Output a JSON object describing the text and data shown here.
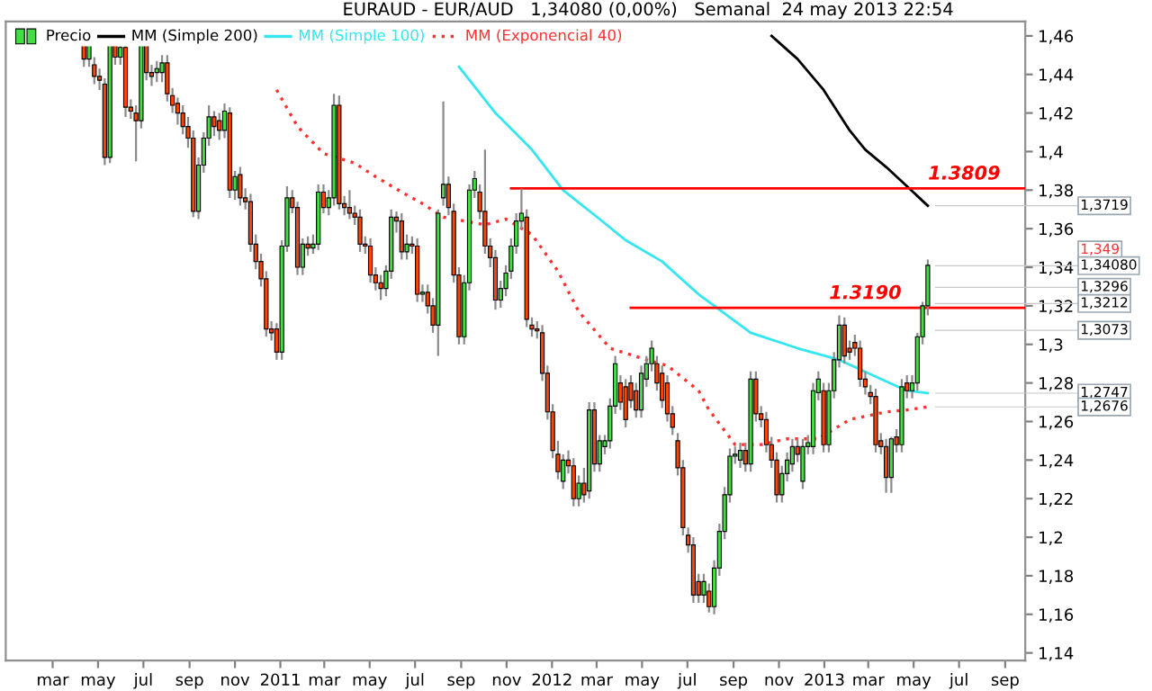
{
  "chart_data": {
    "type": "candlestick",
    "title": "EURAUD - EUR/AUD   1,34080 (0,00%)   Semanal  24 may 2013 22:54",
    "series": [
      {
        "type": "line",
        "name": "MM (Simple 200)",
        "color": "#000000",
        "line_style": "solid",
        "x": [
          "2012-10-22",
          "2012-11-26",
          "2012-12-31",
          "2013-02-04",
          "2013-02-25",
          "2013-03-25",
          "2013-04-22",
          "2013-05-20"
        ],
        "values": [
          1.46,
          1.448,
          1.432,
          1.411,
          1.401,
          1.392,
          1.382,
          1.3719
        ]
      },
      {
        "type": "line",
        "name": "MM (Simple 100)",
        "color": "#33e6f0",
        "line_style": "solid",
        "x": [
          "2011-08-29",
          "2011-10-17",
          "2011-12-05",
          "2012-01-16",
          "2012-03-05",
          "2012-04-09",
          "2012-05-28",
          "2012-07-16",
          "2012-08-06",
          "2012-09-24",
          "2012-11-26",
          "2013-01-21",
          "2013-03-18",
          "2013-04-22",
          "2013-05-20"
        ],
        "values": [
          1.444,
          1.42,
          1.401,
          1.38,
          1.365,
          1.354,
          1.343,
          1.326,
          1.32,
          1.306,
          1.298,
          1.292,
          1.282,
          1.276,
          1.2747
        ]
      },
      {
        "type": "line",
        "name": "MM (Exponencial 40)",
        "color": "#ff3030",
        "line_style": "dotted",
        "x": [
          "2010-12-27",
          "2011-01-24",
          "2011-02-28",
          "2011-04-11",
          "2011-05-09",
          "2011-06-13",
          "2011-07-11",
          "2011-08-08",
          "2011-10-03",
          "2011-10-31",
          "2011-12-05",
          "2012-01-09",
          "2012-02-06",
          "2012-03-19",
          "2012-05-07",
          "2012-06-04",
          "2012-07-16",
          "2012-07-30",
          "2012-09-03",
          "2012-10-08",
          "2012-11-12",
          "2012-12-24",
          "2013-02-04",
          "2013-03-25",
          "2013-04-22",
          "2013-05-20"
        ],
        "values": [
          1.432,
          1.413,
          1.399,
          1.394,
          1.387,
          1.379,
          1.373,
          1.366,
          1.362,
          1.365,
          1.357,
          1.338,
          1.317,
          1.298,
          1.292,
          1.289,
          1.276,
          1.266,
          1.248,
          1.248,
          1.251,
          1.251,
          1.261,
          1.265,
          1.266,
          1.2676
        ]
      },
      {
        "type": "line",
        "color": "#ff0000",
        "line_style": "solid",
        "x": [
          "2011-11-07",
          "2013-09-28"
        ],
        "values": [
          1.3809,
          1.3809
        ]
      },
      {
        "type": "line",
        "color": "#ff0000",
        "line_style": "solid",
        "x": [
          "2012-04-16",
          "2013-09-28"
        ],
        "values": [
          1.319,
          1.319
        ]
      },
      {
        "name": "Precio",
        "colors": [
          "#ff4500",
          "#44dd44",
          "#ff4500",
          "#ff4500",
          "#ff4500",
          "#44dd44",
          "#ff4500",
          "#44dd44",
          "#ff4500",
          "#ff4500",
          "#ff4500",
          "#44dd44",
          "#ff4500",
          "#ff4500",
          "#44dd44",
          "#44dd44",
          "#ff4500",
          "#ff4500",
          "#ff4500",
          "#ff4500",
          "#ff4500",
          "#ff4500",
          "#44dd44",
          "#44dd44",
          "#44dd44",
          "#ff4500",
          "#ff4500",
          "#44dd44",
          "#ff4500",
          "#44dd44",
          "#ff4500",
          "#ff4500",
          "#ff4500",
          "#ff4500",
          "#ff4500",
          "#ff4500",
          "#ff4500",
          "#ff4500",
          "#44dd44",
          "#44dd44",
          "#ff4500",
          "#ff4500",
          "#44dd44",
          "#ff4500",
          "#44dd44",
          "#44dd44",
          "#ff4500",
          "#44dd44",
          "#44dd44",
          "#ff4500",
          "#ff4500",
          "#ff4500",
          "#ff4500",
          "#ff4500",
          "#ff4500",
          "#ff4500",
          "#ff4500",
          "#ff4500",
          "#44dd44",
          "#44dd44",
          "#ff4500",
          "#ff4500",
          "#44dd44",
          "#ff4500",
          "#ff4500",
          "#44dd44",
          "#ff4500",
          "#ff4500",
          "#44dd44",
          "#44dd44",
          "#ff4500",
          "#ff4500",
          "#ff4500",
          "#44dd44",
          "#44dd44",
          "#44dd44",
          "#ff4500",
          "#ff4500",
          "#ff4500",
          "#ff4500",
          "#44dd44",
          "#44dd44",
          "#44dd44",
          "#44dd44",
          "#44dd44",
          "#ff4500",
          "#ff4500",
          "#ff4500",
          "#ff4500",
          "#ff4500",
          "#ff4500",
          "#ff4500",
          "#44dd44",
          "#ff4500",
          "#ff4500",
          "#44dd44",
          "#ff4500",
          "#44dd44",
          "#ff4500",
          "#44dd44",
          "#44dd44",
          "#44dd44",
          "#44dd44",
          "#ff4500",
          "#ff4500",
          "#ff4500",
          "#ff4500",
          "#44dd44",
          "#44dd44",
          "#44dd44",
          "#ff4500",
          "#ff4500",
          "#ff4500",
          "#ff4500",
          "#ff4500",
          "#ff4500",
          "#ff4500",
          "#ff4500",
          "#ff4500",
          "#44dd44",
          "#ff4500",
          "#44dd44",
          "#44dd44",
          "#44dd44",
          "#44dd44",
          "#44dd44",
          "#44dd44",
          "#ff4500",
          "#44dd44",
          "#ff4500",
          "#ff4500",
          "#ff4500",
          "#ff4500",
          "#ff4500",
          "#44dd44",
          "#44dd44",
          "#44dd44",
          "#ff4500",
          "#44dd44",
          "#44dd44",
          "#44dd44",
          "#44dd44",
          "#ff4500",
          "#44dd44",
          "#44dd44",
          "#44dd44",
          "#ff4500",
          "#ff4500",
          "#ff4500",
          "#ff4500",
          "#ff4500",
          "#ff4500",
          "#ff4500",
          "#ff4500",
          "#ff4500",
          "#44dd44",
          "#ff4500",
          "#44dd44",
          "#ff4500",
          "#44dd44",
          "#44dd44",
          "#44dd44",
          "#44dd44"
        ],
        "x": [
          "2010-04-12",
          "2010-04-19",
          "2010-04-26",
          "2010-05-03",
          "2010-05-10",
          "2010-05-17",
          "2010-05-24",
          "2010-05-31",
          "2010-06-07",
          "2010-06-14",
          "2010-06-21",
          "2010-06-28",
          "2010-07-05",
          "2010-07-12",
          "2010-07-19",
          "2010-07-26",
          "2010-08-02",
          "2010-08-09",
          "2010-08-16",
          "2010-08-23",
          "2010-08-30",
          "2010-09-06",
          "2010-09-13",
          "2010-09-20",
          "2010-09-27",
          "2010-10-04",
          "2010-10-11",
          "2010-10-18",
          "2010-10-25",
          "2010-11-01",
          "2010-11-08",
          "2010-11-15",
          "2010-11-22",
          "2010-11-29",
          "2010-12-06",
          "2010-12-13",
          "2010-12-20",
          "2010-12-27",
          "2011-01-03",
          "2011-01-10",
          "2011-01-17",
          "2011-01-24",
          "2011-01-31",
          "2011-02-07",
          "2011-02-14",
          "2011-02-21",
          "2011-02-28",
          "2011-03-07",
          "2011-03-14",
          "2011-03-21",
          "2011-03-28",
          "2011-04-04",
          "2011-04-11",
          "2011-04-18",
          "2011-04-25",
          "2011-05-02",
          "2011-05-09",
          "2011-05-16",
          "2011-05-23",
          "2011-05-30",
          "2011-06-06",
          "2011-06-13",
          "2011-06-20",
          "2011-06-27",
          "2011-07-04",
          "2011-07-11",
          "2011-07-18",
          "2011-07-25",
          "2011-08-01",
          "2011-08-08",
          "2011-08-15",
          "2011-08-22",
          "2011-08-29",
          "2011-09-05",
          "2011-09-12",
          "2011-09-19",
          "2011-09-26",
          "2011-10-03",
          "2011-10-10",
          "2011-10-17",
          "2011-10-24",
          "2011-10-31",
          "2011-11-07",
          "2011-11-14",
          "2011-11-21",
          "2011-11-28",
          "2011-12-05",
          "2011-12-12",
          "2011-12-19",
          "2011-12-26",
          "2012-01-02",
          "2012-01-09",
          "2012-01-16",
          "2012-01-23",
          "2012-01-30",
          "2012-02-06",
          "2012-02-13",
          "2012-02-20",
          "2012-02-27",
          "2012-03-05",
          "2012-03-12",
          "2012-03-19",
          "2012-03-26",
          "2012-04-02",
          "2012-04-09",
          "2012-04-16",
          "2012-04-23",
          "2012-04-30",
          "2012-05-07",
          "2012-05-14",
          "2012-05-21",
          "2012-05-28",
          "2012-06-04",
          "2012-06-11",
          "2012-06-18",
          "2012-06-25",
          "2012-07-02",
          "2012-07-09",
          "2012-07-16",
          "2012-07-23",
          "2012-07-30",
          "2012-08-06",
          "2012-08-13",
          "2012-08-20",
          "2012-08-27",
          "2012-09-03",
          "2012-09-10",
          "2012-09-17",
          "2012-09-24",
          "2012-10-01",
          "2012-10-08",
          "2012-10-15",
          "2012-10-22",
          "2012-10-29",
          "2012-11-05",
          "2012-11-12",
          "2012-11-19",
          "2012-11-26",
          "2012-12-03",
          "2012-12-10",
          "2012-12-17",
          "2012-12-24",
          "2012-12-31",
          "2013-01-07",
          "2013-01-14",
          "2013-01-21",
          "2013-01-28",
          "2013-02-04",
          "2013-02-11",
          "2013-02-18",
          "2013-02-25",
          "2013-03-04",
          "2013-03-11",
          "2013-03-18",
          "2013-03-25",
          "2013-04-01",
          "2013-04-08",
          "2013-04-15",
          "2013-04-22",
          "2013-04-29",
          "2013-05-06",
          "2013-05-13",
          "2013-05-20"
        ],
        "ohlc": [
          [
            1.46,
            1.46,
            1.444,
            1.448
          ],
          [
            1.448,
            1.46,
            1.444,
            1.458
          ],
          [
            1.445,
            1.449,
            1.435,
            1.439
          ],
          [
            1.439,
            1.443,
            1.432,
            1.437
          ],
          [
            1.435,
            1.438,
            1.393,
            1.397
          ],
          [
            1.397,
            1.46,
            1.394,
            1.46
          ],
          [
            1.458,
            1.46,
            1.445,
            1.449
          ],
          [
            1.449,
            1.458,
            1.445,
            1.454
          ],
          [
            1.454,
            1.458,
            1.418,
            1.423
          ],
          [
            1.423,
            1.427,
            1.417,
            1.421
          ],
          [
            1.42,
            1.424,
            1.395,
            1.416
          ],
          [
            1.416,
            1.46,
            1.412,
            1.458
          ],
          [
            1.458,
            1.46,
            1.437,
            1.441
          ],
          [
            1.441,
            1.445,
            1.434,
            1.439
          ],
          [
            1.441,
            1.447,
            1.436,
            1.443
          ],
          [
            1.441,
            1.45,
            1.436,
            1.446
          ],
          [
            1.446,
            1.45,
            1.426,
            1.43
          ],
          [
            1.429,
            1.433,
            1.42,
            1.424
          ],
          [
            1.425,
            1.428,
            1.414,
            1.42
          ],
          [
            1.42,
            1.424,
            1.409,
            1.413
          ],
          [
            1.413,
            1.418,
            1.402,
            1.407
          ],
          [
            1.407,
            1.411,
            1.366,
            1.369
          ],
          [
            1.369,
            1.397,
            1.365,
            1.393
          ],
          [
            1.393,
            1.41,
            1.389,
            1.407
          ],
          [
            1.407,
            1.424,
            1.403,
            1.418
          ],
          [
            1.418,
            1.421,
            1.408,
            1.413
          ],
          [
            1.416,
            1.42,
            1.406,
            1.411
          ],
          [
            1.411,
            1.425,
            1.407,
            1.421
          ],
          [
            1.42,
            1.423,
            1.376,
            1.38
          ],
          [
            1.38,
            1.39,
            1.375,
            1.387
          ],
          [
            1.388,
            1.392,
            1.372,
            1.376
          ],
          [
            1.376,
            1.381,
            1.37,
            1.374
          ],
          [
            1.374,
            1.378,
            1.348,
            1.352
          ],
          [
            1.352,
            1.357,
            1.339,
            1.343
          ],
          [
            1.343,
            1.347,
            1.33,
            1.334
          ],
          [
            1.334,
            1.338,
            1.304,
            1.308
          ],
          [
            1.308,
            1.312,
            1.302,
            1.306
          ],
          [
            1.308,
            1.311,
            1.292,
            1.296
          ],
          [
            1.296,
            1.354,
            1.292,
            1.351
          ],
          [
            1.351,
            1.382,
            1.348,
            1.376
          ],
          [
            1.376,
            1.38,
            1.368,
            1.371
          ],
          [
            1.371,
            1.374,
            1.336,
            1.34
          ],
          [
            1.34,
            1.355,
            1.336,
            1.352
          ],
          [
            1.352,
            1.356,
            1.346,
            1.35
          ],
          [
            1.35,
            1.357,
            1.347,
            1.352
          ],
          [
            1.352,
            1.383,
            1.349,
            1.379
          ],
          [
            1.379,
            1.383,
            1.368,
            1.371
          ],
          [
            1.371,
            1.38,
            1.367,
            1.376
          ],
          [
            1.376,
            1.43,
            1.372,
            1.424
          ],
          [
            1.424,
            1.429,
            1.37,
            1.373
          ],
          [
            1.373,
            1.377,
            1.367,
            1.371
          ],
          [
            1.371,
            1.38,
            1.365,
            1.368
          ],
          [
            1.368,
            1.372,
            1.362,
            1.366
          ],
          [
            1.366,
            1.37,
            1.348,
            1.352
          ],
          [
            1.352,
            1.356,
            1.347,
            1.351
          ],
          [
            1.351,
            1.355,
            1.332,
            1.336
          ],
          [
            1.336,
            1.34,
            1.328,
            1.332
          ],
          [
            1.332,
            1.336,
            1.323,
            1.329
          ],
          [
            1.329,
            1.341,
            1.325,
            1.338
          ],
          [
            1.338,
            1.37,
            1.334,
            1.366
          ],
          [
            1.366,
            1.369,
            1.358,
            1.364
          ],
          [
            1.364,
            1.368,
            1.344,
            1.348
          ],
          [
            1.348,
            1.357,
            1.344,
            1.352
          ],
          [
            1.352,
            1.356,
            1.347,
            1.351
          ],
          [
            1.351,
            1.355,
            1.322,
            1.326
          ],
          [
            1.326,
            1.331,
            1.322,
            1.327
          ],
          [
            1.327,
            1.331,
            1.316,
            1.32
          ],
          [
            1.32,
            1.324,
            1.306,
            1.31
          ],
          [
            1.31,
            1.37,
            1.294,
            1.368
          ],
          [
            1.376,
            1.426,
            1.372,
            1.383
          ],
          [
            1.383,
            1.387,
            1.367,
            1.371
          ],
          [
            1.369,
            1.373,
            1.332,
            1.336
          ],
          [
            1.336,
            1.34,
            1.3,
            1.304
          ],
          [
            1.304,
            1.336,
            1.3,
            1.332
          ],
          [
            1.332,
            1.383,
            1.328,
            1.38
          ],
          [
            1.38,
            1.39,
            1.376,
            1.386
          ],
          [
            1.379,
            1.383,
            1.365,
            1.369
          ],
          [
            1.369,
            1.401,
            1.347,
            1.351
          ],
          [
            1.351,
            1.355,
            1.34,
            1.345
          ],
          [
            1.345,
            1.349,
            1.318,
            1.323
          ],
          [
            1.323,
            1.333,
            1.319,
            1.329
          ],
          [
            1.329,
            1.341,
            1.325,
            1.337
          ],
          [
            1.338,
            1.355,
            1.334,
            1.351
          ],
          [
            1.351,
            1.368,
            1.347,
            1.364
          ],
          [
            1.364,
            1.3809,
            1.36,
            1.368
          ],
          [
            1.366,
            1.37,
            1.309,
            1.313
          ],
          [
            1.31,
            1.314,
            1.304,
            1.308
          ],
          [
            1.308,
            1.312,
            1.303,
            1.307
          ],
          [
            1.306,
            1.31,
            1.281,
            1.285
          ],
          [
            1.285,
            1.289,
            1.261,
            1.265
          ],
          [
            1.265,
            1.269,
            1.241,
            1.245
          ],
          [
            1.243,
            1.25,
            1.23,
            1.234
          ],
          [
            1.229,
            1.243,
            1.225,
            1.24
          ],
          [
            1.24,
            1.245,
            1.233,
            1.237
          ],
          [
            1.237,
            1.241,
            1.216,
            1.22
          ],
          [
            1.22,
            1.232,
            1.216,
            1.228
          ],
          [
            1.228,
            1.236,
            1.218,
            1.222
          ],
          [
            1.224,
            1.27,
            1.22,
            1.266
          ],
          [
            1.266,
            1.27,
            1.234,
            1.238
          ],
          [
            1.238,
            1.253,
            1.234,
            1.25
          ],
          [
            1.247,
            1.253,
            1.243,
            1.25
          ],
          [
            1.25,
            1.272,
            1.246,
            1.268
          ],
          [
            1.268,
            1.294,
            1.264,
            1.29
          ],
          [
            1.28,
            1.284,
            1.266,
            1.27
          ],
          [
            1.278,
            1.282,
            1.257,
            1.261
          ],
          [
            1.28,
            1.284,
            1.267,
            1.271
          ],
          [
            1.276,
            1.28,
            1.262,
            1.266
          ],
          [
            1.266,
            1.289,
            1.262,
            1.285
          ],
          [
            1.282,
            1.294,
            1.278,
            1.29
          ],
          [
            1.29,
            1.302,
            1.286,
            1.298
          ],
          [
            1.29,
            1.294,
            1.276,
            1.28
          ],
          [
            1.285,
            1.289,
            1.267,
            1.271
          ],
          [
            1.28,
            1.284,
            1.26,
            1.264
          ],
          [
            1.264,
            1.268,
            1.253,
            1.257
          ],
          [
            1.25,
            1.254,
            1.232,
            1.236
          ],
          [
            1.236,
            1.24,
            1.201,
            1.205
          ],
          [
            1.201,
            1.205,
            1.192,
            1.196
          ],
          [
            1.196,
            1.2,
            1.166,
            1.17
          ],
          [
            1.177,
            1.181,
            1.166,
            1.17
          ],
          [
            1.17,
            1.181,
            1.166,
            1.177
          ],
          [
            1.172,
            1.176,
            1.161,
            1.164
          ],
          [
            1.164,
            1.188,
            1.16,
            1.184
          ],
          [
            1.184,
            1.207,
            1.18,
            1.203
          ],
          [
            1.203,
            1.226,
            1.199,
            1.222
          ],
          [
            1.222,
            1.246,
            1.218,
            1.242
          ],
          [
            1.242,
            1.247,
            1.238,
            1.243
          ],
          [
            1.24,
            1.249,
            1.236,
            1.245
          ],
          [
            1.245,
            1.249,
            1.234,
            1.238
          ],
          [
            1.238,
            1.286,
            1.234,
            1.282
          ],
          [
            1.282,
            1.286,
            1.26,
            1.264
          ],
          [
            1.264,
            1.268,
            1.257,
            1.261
          ],
          [
            1.261,
            1.265,
            1.244,
            1.248
          ],
          [
            1.248,
            1.252,
            1.236,
            1.24
          ],
          [
            1.24,
            1.244,
            1.218,
            1.222
          ],
          [
            1.222,
            1.237,
            1.218,
            1.233
          ],
          [
            1.233,
            1.244,
            1.229,
            1.24
          ],
          [
            1.238,
            1.251,
            1.234,
            1.247
          ],
          [
            1.247,
            1.251,
            1.239,
            1.243
          ],
          [
            1.229,
            1.251,
            1.225,
            1.247
          ],
          [
            1.247,
            1.253,
            1.243,
            1.249
          ],
          [
            1.247,
            1.28,
            1.243,
            1.276
          ],
          [
            1.275,
            1.286,
            1.271,
            1.282
          ],
          [
            1.276,
            1.28,
            1.244,
            1.248
          ],
          [
            1.248,
            1.28,
            1.244,
            1.276
          ],
          [
            1.276,
            1.296,
            1.272,
            1.292
          ],
          [
            1.292,
            1.315,
            1.288,
            1.31
          ],
          [
            1.31,
            1.314,
            1.29,
            1.294
          ],
          [
            1.298,
            1.302,
            1.292,
            1.296
          ],
          [
            1.301,
            1.305,
            1.294,
            1.298
          ],
          [
            1.298,
            1.302,
            1.278,
            1.282
          ],
          [
            1.282,
            1.286,
            1.274,
            1.278
          ],
          [
            1.275,
            1.279,
            1.269,
            1.273
          ],
          [
            1.273,
            1.277,
            1.244,
            1.248
          ],
          [
            1.25,
            1.254,
            1.243,
            1.247
          ],
          [
            1.247,
            1.251,
            1.223,
            1.231
          ],
          [
            1.231,
            1.252,
            1.223,
            1.251
          ],
          [
            1.252,
            1.256,
            1.244,
            1.248
          ],
          [
            1.248,
            1.282,
            1.244,
            1.278
          ],
          [
            1.28,
            1.284,
            1.272,
            1.276
          ],
          [
            1.276,
            1.284,
            1.272,
            1.28
          ],
          [
            1.28,
            1.306,
            1.276,
            1.304
          ],
          [
            1.304,
            1.322,
            1.3,
            1.32
          ],
          [
            1.32,
            1.344,
            1.315,
            1.341
          ]
        ]
      }
    ],
    "annotations": [
      {
        "text": "1.3809",
        "x": "2013-07-08",
        "y": 1.3809
      },
      {
        "text": "1.3190",
        "x": "2013-02-25",
        "y": 1.319
      },
      {
        "text": "1,3719",
        "x": "2013-05-20",
        "y": 1.3719
      },
      "1,349",
      {
        "text": "1,34080",
        "x": "2013-05-20",
        "y": 1.3408
      },
      {
        "text": "1,3296",
        "x": "2013-05-20",
        "y": 1.3296
      },
      {
        "text": "1,3212",
        "x": "2013-05-20",
        "y": 1.3212
      },
      {
        "text": "1,3073",
        "x": "2013-05-20",
        "y": 1.3073
      },
      {
        "text": "1,2747",
        "x": "2013-05-20",
        "y": 1.2747
      },
      {
        "text": "1,2676",
        "x": "2013-05-20",
        "y": 1.2676
      }
    ],
    "xlim": [
      "2009-12-28",
      "2013-09-28"
    ],
    "xticks": [
      {
        "value": "2010-03-01",
        "label": "mar"
      },
      {
        "value": "2010-05-01",
        "label": "may"
      },
      {
        "value": "2010-07-01",
        "label": "jul"
      },
      {
        "value": "2010-09-01",
        "label": "sep"
      },
      {
        "value": "2010-11-01",
        "label": "nov"
      },
      {
        "value": "2011-01-01",
        "label": "2011"
      },
      {
        "value": "2011-03-01",
        "label": "mar"
      },
      {
        "value": "2011-05-01",
        "label": "may"
      },
      {
        "value": "2011-07-01",
        "label": "jul"
      },
      {
        "value": "2011-09-01",
        "label": "sep"
      },
      {
        "value": "2011-11-01",
        "label": "nov"
      },
      {
        "value": "2012-01-01",
        "label": "2012"
      },
      {
        "value": "2012-03-01",
        "label": "mar"
      },
      {
        "value": "2012-05-01",
        "label": "may"
      },
      {
        "value": "2012-07-01",
        "label": "jul"
      },
      {
        "value": "2012-09-01",
        "label": "sep"
      },
      {
        "value": "2012-11-01",
        "label": "nov"
      },
      {
        "value": "2013-01-01",
        "label": "2013"
      },
      {
        "value": "2013-03-01",
        "label": "mar"
      },
      {
        "value": "2013-05-01",
        "label": "may"
      },
      {
        "value": "2013-07-01",
        "label": "jul"
      },
      {
        "value": "2013-09-01",
        "label": "sep"
      }
    ],
    "ylim": [
      1.136,
      1.4675
    ],
    "yticks": [
      {
        "value": 1.14,
        "label": "1,14"
      },
      {
        "value": 1.16,
        "label": "1,16"
      },
      {
        "value": 1.18,
        "label": "1,18"
      },
      {
        "value": 1.2,
        "label": "1,2"
      },
      {
        "value": 1.22,
        "label": "1,22"
      },
      {
        "value": 1.24,
        "label": "1,24"
      },
      {
        "value": 1.26,
        "label": "1,26"
      },
      {
        "value": 1.28,
        "label": "1,28"
      },
      {
        "value": 1.3,
        "label": "1,3"
      },
      {
        "value": 1.32,
        "label": "1,32"
      },
      {
        "value": 1.34,
        "label": "1,34"
      },
      {
        "value": 1.36,
        "label": "1,36"
      },
      {
        "value": 1.38,
        "label": "1,38"
      },
      {
        "value": 1.4,
        "label": "1,4"
      },
      {
        "value": 1.42,
        "label": "1,42"
      },
      {
        "value": 1.44,
        "label": "1,44"
      },
      {
        "value": 1.46,
        "label": "1,46"
      }
    ],
    "legend": "top left"
  }
}
